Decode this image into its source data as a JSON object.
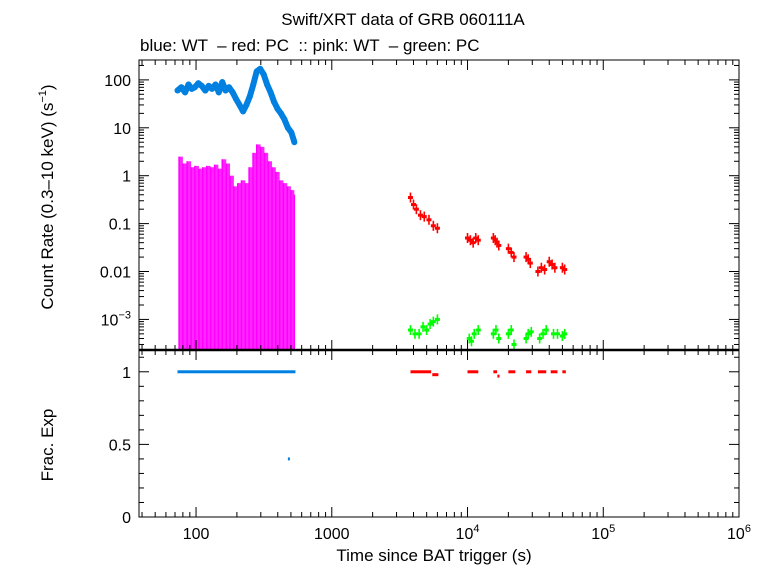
{
  "chart_data": {
    "type": "scatter",
    "title": "Swift/XRT data of GRB 060111A",
    "subtitle": "blue: WT  – red: PC  :: pink: WT  – green: PC",
    "xlabel": "Time since BAT trigger (s)",
    "xscale": "log",
    "xlim": [
      38,
      1000000
    ],
    "x_ticks": [
      {
        "value": 100,
        "label": "100"
      },
      {
        "value": 1000,
        "label": "1000"
      },
      {
        "value": 10000,
        "base": "10",
        "exp": "4"
      },
      {
        "value": 100000,
        "base": "10",
        "exp": "5"
      },
      {
        "value": 1000000,
        "base": "10",
        "exp": "6"
      }
    ],
    "panels": [
      {
        "name": "count-rate",
        "ylabel": "Count Rate (0.3–10 keV) (s",
        "ylabel_exp": "−1",
        "ylabel_end": ")",
        "yscale": "log",
        "ylim": [
          0.00023,
          260
        ],
        "y_ticks": [
          {
            "value": 100,
            "label": "100"
          },
          {
            "value": 10,
            "label": "10"
          },
          {
            "value": 1,
            "label": "1"
          },
          {
            "value": 0.1,
            "label": "0.1"
          },
          {
            "value": 0.01,
            "label": "0.01"
          },
          {
            "value": 0.001,
            "base": "10",
            "exp": "−3"
          }
        ],
        "series": [
          {
            "color": "#0080e0",
            "points": [
              [
                73,
                60
              ],
              [
                78,
                70
              ],
              [
                83,
                55
              ],
              [
                88,
                80
              ],
              [
                93,
                65
              ],
              [
                98,
                70
              ],
              [
                104,
                85
              ],
              [
                110,
                75
              ],
              [
                117,
                60
              ],
              [
                124,
                75
              ],
              [
                131,
                65
              ],
              [
                139,
                80
              ],
              [
                147,
                55
              ],
              [
                156,
                90
              ],
              [
                165,
                60
              ],
              [
                175,
                70
              ],
              [
                186,
                55
              ],
              [
                197,
                40
              ],
              [
                209,
                30
              ],
              [
                222,
                22
              ],
              [
                235,
                30
              ],
              [
                249,
                45
              ],
              [
                264,
                80
              ],
              [
                280,
                150
              ],
              [
                297,
                170
              ],
              [
                315,
                130
              ],
              [
                334,
                80
              ],
              [
                354,
                55
              ],
              [
                375,
                35
              ],
              [
                398,
                25
              ],
              [
                422,
                20
              ],
              [
                448,
                15
              ],
              [
                475,
                10
              ],
              [
                503,
                8
              ],
              [
                530,
                5
              ]
            ]
          },
          {
            "color": "#ff00ff",
            "points": [
              [
                75,
                2.5
              ],
              [
                80,
                1.8
              ],
              [
                86,
                2
              ],
              [
                92,
                1.5
              ],
              [
                98,
                1.6
              ],
              [
                105,
                1.4
              ],
              [
                112,
                1.5
              ],
              [
                120,
                1.6
              ],
              [
                128,
                1.5
              ],
              [
                137,
                1.7
              ],
              [
                146,
                1.4
              ],
              [
                156,
                2.2
              ],
              [
                167,
                1.8
              ],
              [
                178,
                1
              ],
              [
                190,
                0.6
              ],
              [
                203,
                0.7
              ],
              [
                216,
                0.8
              ],
              [
                231,
                0.7
              ],
              [
                246,
                1.5
              ],
              [
                263,
                3
              ],
              [
                280,
                4.5
              ],
              [
                299,
                4
              ],
              [
                319,
                3
              ],
              [
                340,
                2
              ],
              [
                363,
                1.5
              ],
              [
                387,
                1.2
              ],
              [
                413,
                0.8
              ],
              [
                440,
                0.7
              ],
              [
                470,
                0.6
              ],
              [
                500,
                0.5
              ],
              [
                530,
                0.4
              ]
            ]
          },
          {
            "color": "#ff0000",
            "points": [
              [
                3800,
                0.35
              ],
              [
                4000,
                0.25
              ],
              [
                4200,
                0.2
              ],
              [
                4500,
                0.15
              ],
              [
                4800,
                0.14
              ],
              [
                5200,
                0.12
              ],
              [
                5600,
                0.09
              ],
              [
                6000,
                0.08
              ],
              [
                10000,
                0.05
              ],
              [
                10500,
                0.045
              ],
              [
                11000,
                0.04
              ],
              [
                11500,
                0.05
              ],
              [
                12000,
                0.045
              ],
              [
                15500,
                0.05
              ],
              [
                16000,
                0.045
              ],
              [
                16500,
                0.04
              ],
              [
                17000,
                0.035
              ],
              [
                20000,
                0.03
              ],
              [
                21000,
                0.025
              ],
              [
                22000,
                0.02
              ],
              [
                27000,
                0.02
              ],
              [
                28000,
                0.018
              ],
              [
                29000,
                0.015
              ],
              [
                33000,
                0.01
              ],
              [
                35000,
                0.012
              ],
              [
                37000,
                0.011
              ],
              [
                40000,
                0.016
              ],
              [
                42000,
                0.014
              ],
              [
                44000,
                0.012
              ],
              [
                50000,
                0.012
              ],
              [
                52000,
                0.011
              ]
            ]
          },
          {
            "color": "#00ff00",
            "points": [
              [
                3800,
                0.0006
              ],
              [
                4100,
                0.0005
              ],
              [
                4400,
                0.0005
              ],
              [
                4700,
                0.0007
              ],
              [
                5000,
                0.0006
              ],
              [
                5300,
                0.0008
              ],
              [
                5600,
                0.0009
              ],
              [
                6000,
                0.001
              ],
              [
                10300,
                0.0004
              ],
              [
                10700,
                0.00035
              ],
              [
                11200,
                0.0005
              ],
              [
                12000,
                0.0006
              ],
              [
                15500,
                0.0005
              ],
              [
                16200,
                0.0006
              ],
              [
                17000,
                0.0004
              ],
              [
                20000,
                0.0005
              ],
              [
                21000,
                0.0006
              ],
              [
                22000,
                0.0003
              ],
              [
                27000,
                0.0004
              ],
              [
                28000,
                0.0005
              ],
              [
                29500,
                0.00055
              ],
              [
                34000,
                0.0004
              ],
              [
                36000,
                0.0005
              ],
              [
                38000,
                0.0006
              ],
              [
                43000,
                0.0005
              ],
              [
                46000,
                0.0005
              ],
              [
                50000,
                0.00045
              ],
              [
                52000,
                0.0005
              ]
            ]
          }
        ]
      },
      {
        "name": "frac-exp",
        "ylabel": "Frac. Exp",
        "yscale": "linear",
        "ylim": [
          0,
          1.15
        ],
        "y_ticks": [
          {
            "value": 1,
            "label": "1"
          },
          {
            "value": 0.5,
            "label": "0.5"
          },
          {
            "value": 0,
            "label": "0"
          }
        ],
        "segments": [
          {
            "color": "#0080e0",
            "x0": 73,
            "x1": 540,
            "y": 1
          },
          {
            "color": "#0080e0",
            "x0": 475,
            "x1": 490,
            "y": 0.4
          },
          {
            "color": "#ff0000",
            "x0": 3800,
            "x1": 5400,
            "y": 1
          },
          {
            "color": "#ff0000",
            "x0": 5500,
            "x1": 6100,
            "y": 0.98
          },
          {
            "color": "#ff0000",
            "x0": 10000,
            "x1": 12000,
            "y": 1
          },
          {
            "color": "#ff0000",
            "x0": 15500,
            "x1": 16500,
            "y": 1
          },
          {
            "color": "#ff0000",
            "x0": 16600,
            "x1": 17200,
            "y": 0.97
          },
          {
            "color": "#ff0000",
            "x0": 20000,
            "x1": 22500,
            "y": 1
          },
          {
            "color": "#ff0000",
            "x0": 27000,
            "x1": 29500,
            "y": 1
          },
          {
            "color": "#ff0000",
            "x0": 33000,
            "x1": 38000,
            "y": 1
          },
          {
            "color": "#ff0000",
            "x0": 41000,
            "x1": 46000,
            "y": 1
          },
          {
            "color": "#ff0000",
            "x0": 50000,
            "x1": 53000,
            "y": 1
          }
        ]
      }
    ]
  }
}
